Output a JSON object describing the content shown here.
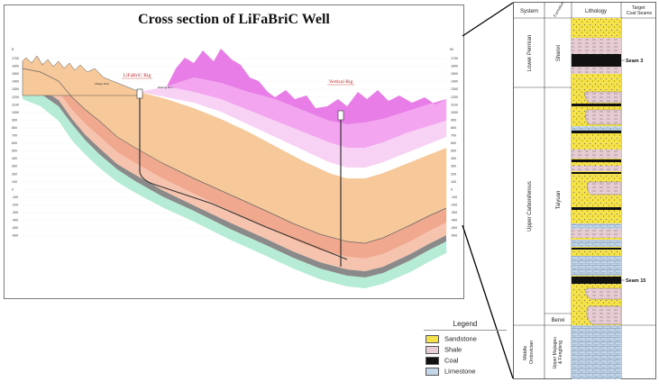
{
  "cross_section": {
    "title": "Cross section of LiFaBriC Well",
    "west_label": "E",
    "east_label": "W",
    "left_axis_ticks": [
      "1700",
      "1600",
      "1500",
      "1400",
      "1300",
      "1200",
      "1100",
      "1000",
      "900",
      "800",
      "700",
      "600",
      "500",
      "400",
      "300",
      "200",
      "100",
      "0",
      "-100",
      "-200",
      "-300",
      "-400",
      "-500",
      "-600"
    ],
    "right_axis_ticks": [
      "1700",
      "1600",
      "1500",
      "1400",
      "1300",
      "1200",
      "1100",
      "1000",
      "900",
      "800",
      "700",
      "600",
      "500",
      "400",
      "300",
      "200",
      "100",
      "0",
      "-100",
      "-200",
      "-300",
      "-400",
      "-500",
      "-600"
    ],
    "wells": [
      {
        "label": "LiFaBriC Rig"
      },
      {
        "label": "Vertical Rig"
      }
    ],
    "village_labels": [
      "Village Well",
      "Beifeng Ren"
    ],
    "colors": {
      "upper_magenta": "#e87de8",
      "mid_magenta": "#f3a6ef",
      "light_pink_band": "#f8d2f4",
      "white_band": "#ffffff",
      "orange_fill": "#f7c99a",
      "salmon_band": "#f0a98e",
      "light_salmon": "#f6c4ae",
      "grey_band": "#8a8a8a",
      "mint_band": "#b6ecd6",
      "grid": "#cccccc"
    }
  },
  "stratigraphic_column": {
    "headers": {
      "system": "System",
      "formation": "Formation",
      "lithology": "Lithology",
      "target": "Target Coal Seams"
    },
    "systems": [
      {
        "name": "Lower Permian"
      },
      {
        "name": "Upper Carboniferous"
      },
      {
        "name": "Middle Ordovician"
      }
    ],
    "formations": [
      {
        "name": "Shanxi"
      },
      {
        "name": "Taiyuan"
      },
      {
        "name": "Benxi"
      },
      {
        "name": "Upper Majiagou & Fengfeng"
      }
    ],
    "seams": [
      {
        "label": "Seam 3"
      },
      {
        "label": "Seam 15"
      }
    ]
  },
  "legend": {
    "title": "Legend",
    "items": [
      {
        "label": "Sandstone",
        "color": "#f5e14a",
        "pattern": "sandstone"
      },
      {
        "label": "Shale",
        "color": "#e7cdd3",
        "pattern": "shale"
      },
      {
        "label": "Coal",
        "color": "#111111",
        "pattern": "coal"
      },
      {
        "label": "Limestone",
        "color": "#c4d6ea",
        "pattern": "limestone"
      }
    ]
  }
}
